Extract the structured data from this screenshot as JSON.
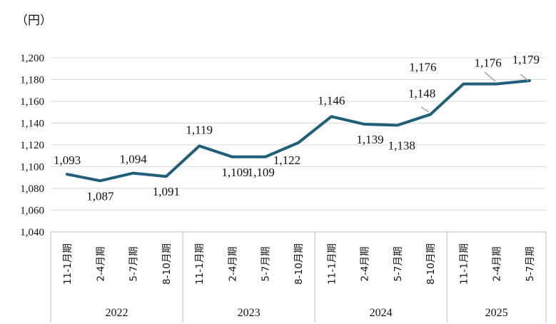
{
  "chart_data": {
    "type": "line",
    "unit_label": "（円）",
    "ylim": [
      1040,
      1200
    ],
    "y_ticks": [
      1040,
      1060,
      1080,
      1100,
      1120,
      1140,
      1160,
      1180,
      1200
    ],
    "y_tick_labels": [
      "1,040",
      "1,060",
      "1,080",
      "1,100",
      "1,120",
      "1,140",
      "1,160",
      "1,180",
      "1,200"
    ],
    "grid": true,
    "line_color": "#1f5f7a",
    "categories": [
      "11-1月期",
      "2-4月期",
      "5-7月期",
      "8-10月期",
      "11-1月期",
      "2-4月期",
      "5-7月期",
      "8-10月期",
      "11-1月期",
      "2-4月期",
      "5-7月期",
      "8-10月期",
      "11-1月期",
      "2-4月期",
      "5-7月期"
    ],
    "groups": [
      {
        "label": "2022",
        "count": 4
      },
      {
        "label": "2023",
        "count": 4
      },
      {
        "label": "2024",
        "count": 4
      },
      {
        "label": "2025",
        "count": 3
      }
    ],
    "series": [
      {
        "values": [
          1093,
          1087,
          1094,
          1091,
          1119,
          1109,
          1109,
          1122,
          1146,
          1139,
          1138,
          1148,
          1176,
          1176,
          1179
        ],
        "data_labels": [
          "1,093",
          "1,087",
          "1,094",
          "1,091",
          "1,119",
          "1,109",
          "1,109",
          "1,122",
          "1,146",
          "1,139",
          "1,138",
          "1,148",
          "1,176",
          "1,176",
          "1,179"
        ]
      }
    ]
  }
}
